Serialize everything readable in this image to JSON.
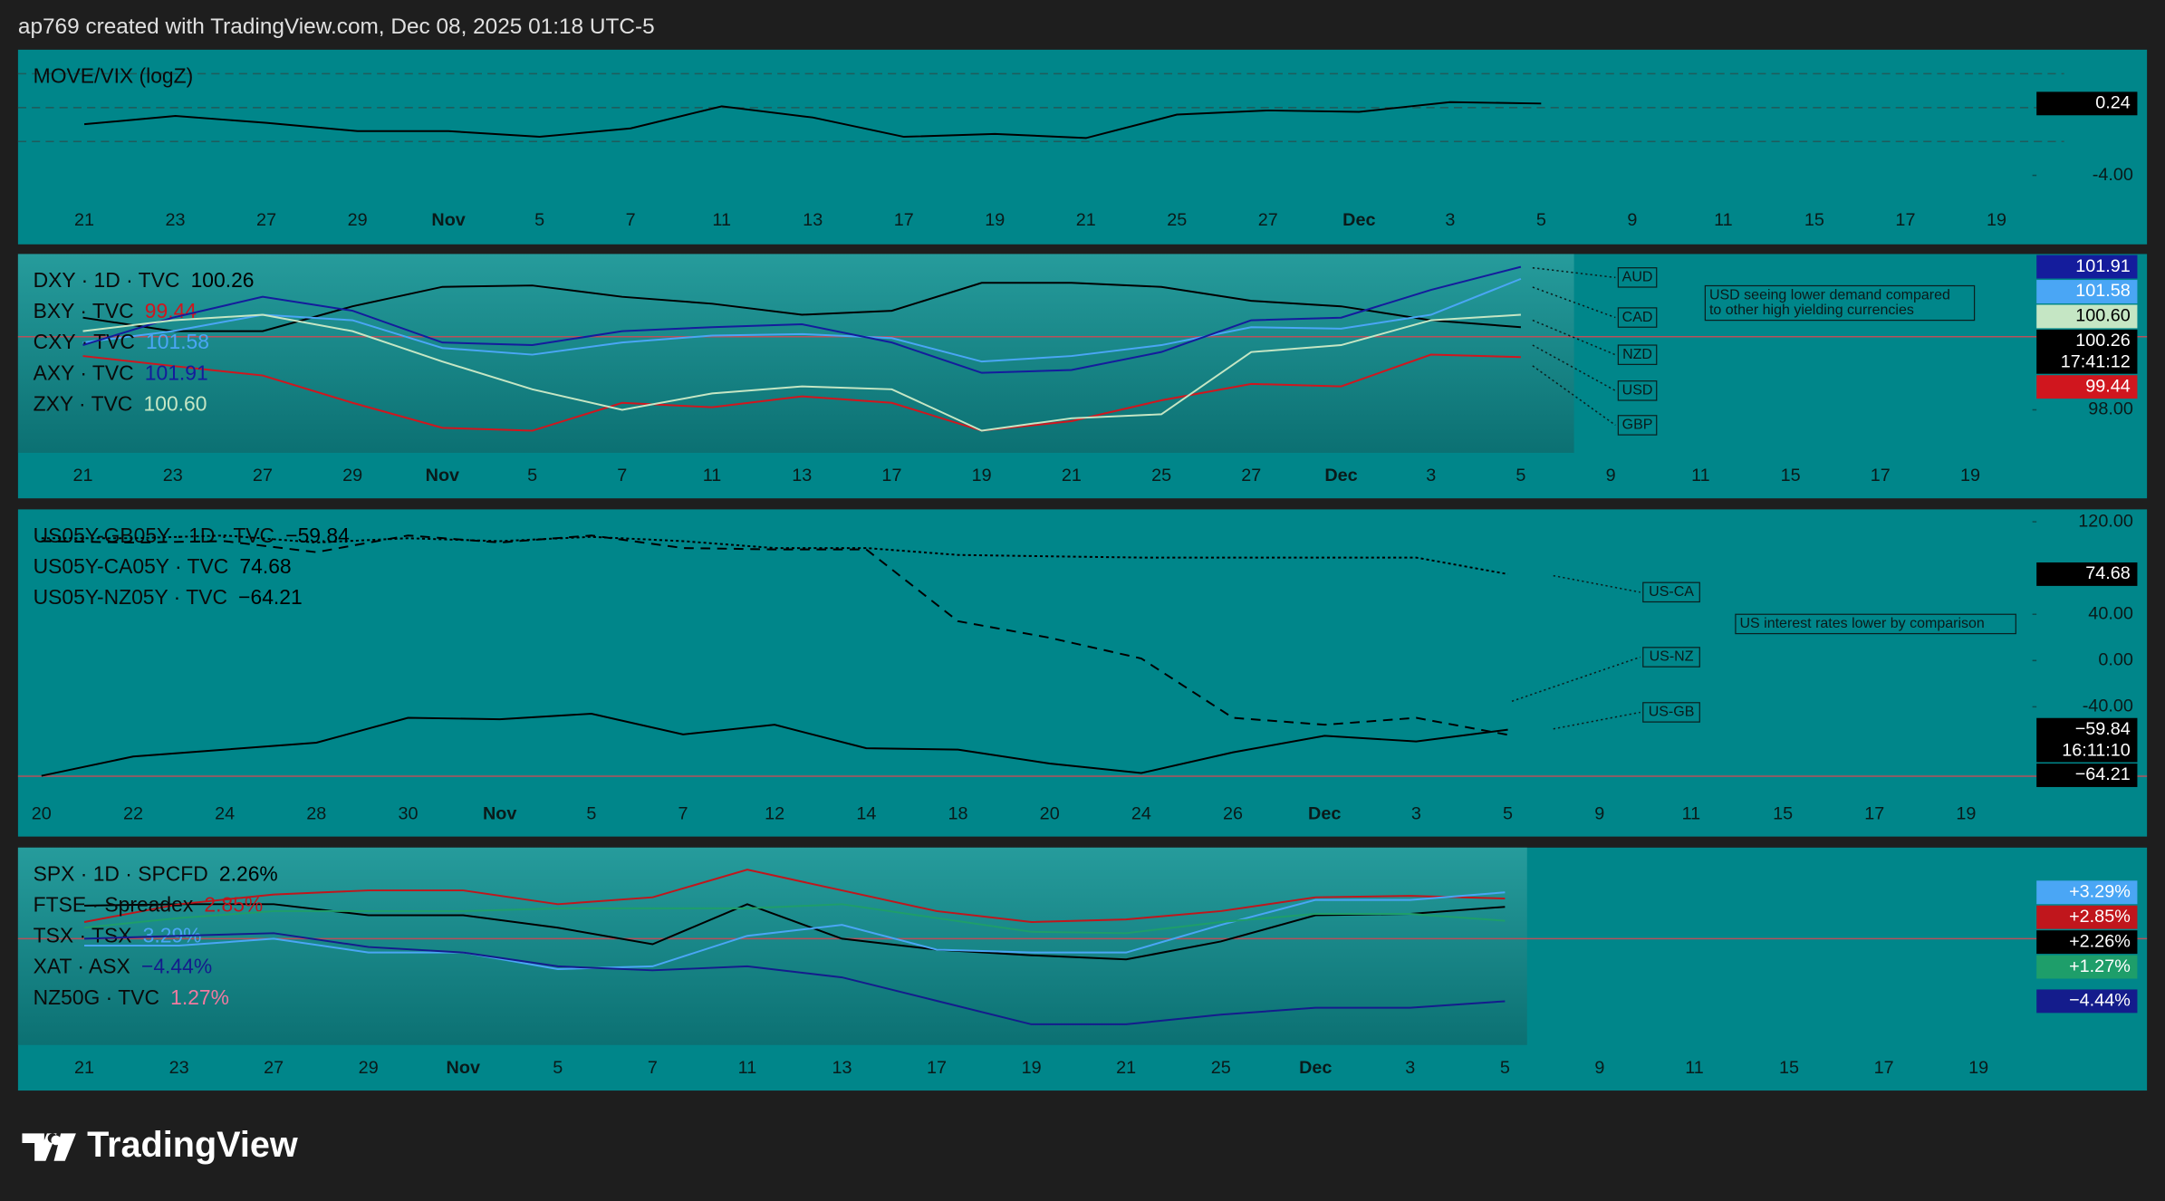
{
  "header": {
    "text": "ap769 created with TradingView.com, Dec 08, 2025 01:18 UTC-5"
  },
  "footer": {
    "brand": "TradingView"
  },
  "chart_data": [
    {
      "type": "line",
      "title": "MOVE/VIX (logZ)",
      "categories": [
        "21",
        "23",
        "27",
        "29",
        "Nov",
        "5",
        "7",
        "11",
        "13",
        "17",
        "19",
        "21",
        "25",
        "27",
        "Dec",
        "3",
        "5",
        "9",
        "11",
        "15",
        "17",
        "19"
      ],
      "ylim": [
        -5.71,
        3.42
      ],
      "yticks": [
        {
          "value": -4,
          "label": "-4.00"
        }
      ],
      "levels": [
        2,
        0,
        -2
      ],
      "level_style": "dashed",
      "level_color": "#1f5c5c",
      "series": [
        {
          "name": "MOVE/VIX",
          "color": "#000000",
          "last_label": "0.24",
          "values": [
            -0.98,
            -0.49,
            -0.9,
            -1.39,
            -1.39,
            -1.72,
            -1.23,
            0.08,
            -0.58,
            -1.72,
            -1.55,
            -1.8,
            -0.41,
            -0.17,
            -0.25,
            0.32,
            0.24,
            null,
            null,
            null,
            null,
            null
          ]
        }
      ]
    },
    {
      "type": "line",
      "categories": [
        "21",
        "23",
        "27",
        "29",
        "Nov",
        "5",
        "7",
        "11",
        "13",
        "17",
        "19",
        "21",
        "25",
        "27",
        "Dec",
        "3",
        "5",
        "9",
        "11",
        "15",
        "17",
        "19"
      ],
      "ylim": [
        96.75,
        102.26
      ],
      "yticks": [
        {
          "value": 98,
          "label": "98.00"
        }
      ],
      "levels": [
        100
      ],
      "level_style": "solid",
      "level_color": "#b8505a",
      "shaded": true,
      "series": [
        {
          "name": "DXY · 1D · TVC",
          "color": "#000000",
          "last_label": "100.26",
          "countdown": "17:41:12",
          "values": [
            100.52,
            100.15,
            100.15,
            100.83,
            101.36,
            101.4,
            101.09,
            100.9,
            100.6,
            100.71,
            101.47,
            101.47,
            101.36,
            100.98,
            100.83,
            100.45,
            100.26,
            null,
            null,
            null,
            null,
            null
          ]
        },
        {
          "name": "BXY · TVC",
          "color": "#d0161e",
          "last_label": "99.44",
          "values": [
            99.47,
            99.2,
            98.94,
            98.19,
            97.51,
            97.43,
            98.19,
            98.07,
            98.37,
            98.19,
            97.43,
            97.69,
            98.26,
            98.71,
            98.64,
            99.51,
            99.44,
            null,
            null,
            null,
            null,
            null
          ]
        },
        {
          "name": "CXY · TVC",
          "color": "#4aa6f5",
          "last_label": "101.58",
          "values": [
            99.84,
            100.15,
            100.6,
            100.45,
            99.69,
            99.51,
            99.84,
            100.03,
            100.07,
            99.96,
            99.32,
            99.47,
            99.77,
            100.26,
            100.22,
            100.6,
            101.58,
            null,
            null,
            null,
            null,
            null
          ]
        },
        {
          "name": "AXY · TVC",
          "color": "#141c9c",
          "last_label": "101.91",
          "values": [
            99.77,
            100.52,
            101.09,
            100.71,
            99.84,
            99.77,
            100.15,
            100.26,
            100.34,
            99.84,
            99.01,
            99.09,
            99.58,
            100.45,
            100.52,
            101.28,
            101.91,
            null,
            null,
            null,
            null,
            null
          ]
        },
        {
          "name": "ZXY · TVC",
          "color": "#c5e6c4",
          "last_label": "100.60",
          "values": [
            100.15,
            100.45,
            100.6,
            100.15,
            99.32,
            98.56,
            98.0,
            98.45,
            98.64,
            98.56,
            97.43,
            97.77,
            97.88,
            99.58,
            99.77,
            100.45,
            100.6,
            null,
            null,
            null,
            null,
            null
          ]
        }
      ],
      "annotations": [
        {
          "text": "AUD"
        },
        {
          "text": "CAD"
        },
        {
          "text": "NZD"
        },
        {
          "text": "USD"
        },
        {
          "text": "GBP"
        }
      ],
      "note": {
        "lines": [
          "USD seeing lower demand compared",
          "to other high yielding currencies"
        ]
      }
    },
    {
      "type": "line",
      "categories": [
        "20",
        "22",
        "24",
        "28",
        "30",
        "Nov",
        "5",
        "7",
        "12",
        "14",
        "18",
        "20",
        "24",
        "26",
        "Dec",
        "3",
        "5",
        "9",
        "11",
        "15",
        "17",
        "19"
      ],
      "ylim": [
        -115.2,
        131.9
      ],
      "yticks": [
        {
          "value": 120,
          "label": "120.00"
        },
        {
          "value": 40,
          "label": "40.00"
        },
        {
          "value": 0,
          "label": "0.00"
        },
        {
          "value": -40,
          "label": "-40.00"
        }
      ],
      "levels": [
        -100
      ],
      "level_style": "solid",
      "level_color": "#b8505a",
      "series": [
        {
          "name": "US05Y-GB05Y · 1D · TVC",
          "color": "#000000",
          "dash": "solid",
          "last_label": "−59.84",
          "countdown": "16:11:10",
          "values": [
            -99.7,
            -83.0,
            -77.0,
            -71.0,
            -49.6,
            -50.7,
            -46.0,
            -63.9,
            -55.5,
            -75.8,
            -77.0,
            -89.0,
            -97.3,
            -79.4,
            -65.1,
            -69.9,
            -59.84,
            null,
            null,
            null,
            null,
            null
          ]
        },
        {
          "name": "US05Y-CA05Y · TVC",
          "color": "#000000",
          "dash": "dotted",
          "last_label": "74.68",
          "values": [
            105.7,
            105.7,
            108.1,
            102.1,
            105.7,
            103.3,
            106.9,
            103.3,
            97.3,
            97.3,
            91.3,
            90.1,
            89.0,
            89.0,
            89.0,
            89.0,
            74.68,
            null,
            null,
            null,
            null,
            null
          ]
        },
        {
          "name": "US05Y-NZ05Y · TVC",
          "color": "#000000",
          "dash": "dashed",
          "last_label": "−64.21",
          "values": [
            103.3,
            102.1,
            103.3,
            93.7,
            108.1,
            102.1,
            108.1,
            97.3,
            96.1,
            96.1,
            34.0,
            19.7,
            1.8,
            -49.6,
            -55.5,
            -49.6,
            -64.21,
            null,
            null,
            null,
            null,
            null
          ]
        }
      ],
      "annotations": [
        {
          "text": "US-CA"
        },
        {
          "text": "US-NZ"
        },
        {
          "text": "US-GB"
        }
      ],
      "note": {
        "lines": [
          "US interest rates lower by comparison"
        ]
      }
    },
    {
      "type": "line",
      "categories": [
        "21",
        "23",
        "27",
        "29",
        "Nov",
        "5",
        "7",
        "11",
        "13",
        "17",
        "19",
        "21",
        "25",
        "Dec",
        "3",
        "5",
        "9",
        "11",
        "15",
        "17",
        "19"
      ],
      "ylim": [
        -7.65,
        6.47
      ],
      "levels": [
        0
      ],
      "level_style": "solid",
      "level_color": "#b8505a",
      "shaded": true,
      "series": [
        {
          "name": "SPX · 1D · SPCFD",
          "color": "#000000",
          "last_label": "2.26%",
          "box_label": "+2.26%",
          "values": [
            2.35,
            2.45,
            2.45,
            1.67,
            1.67,
            0.78,
            -0.39,
            2.45,
            0,
            -0.78,
            -1.18,
            -1.47,
            -0.2,
            1.67,
            1.76,
            2.26,
            null,
            null,
            null,
            null,
            null
          ]
        },
        {
          "name": "FTSE · Spreadex",
          "color": "#c0161c",
          "last_label": "2.85%",
          "box_label": "+2.85%",
          "values": [
            1.18,
            2.45,
            3.14,
            3.43,
            3.43,
            2.45,
            2.94,
            4.9,
            3.43,
            1.96,
            1.18,
            1.37,
            1.96,
            2.94,
            3.04,
            2.85,
            null,
            null,
            null,
            null,
            null
          ]
        },
        {
          "name": "TSX · TSX",
          "color": "#4aa6f5",
          "last_label": "3.29%",
          "box_label": "+3.29%",
          "values": [
            -0.49,
            -0.49,
            0,
            -0.98,
            -0.98,
            -2.16,
            -1.96,
            0.2,
            0.98,
            -0.78,
            -0.98,
            -0.98,
            0.98,
            2.75,
            2.75,
            3.29,
            null,
            null,
            null,
            null,
            null
          ]
        },
        {
          "name": "XAT · ASX",
          "color": "#141c8c",
          "last_label": "−4.44%",
          "box_label": "−4.44%",
          "values": [
            0,
            0.2,
            0.39,
            -0.59,
            -0.98,
            -1.96,
            -2.25,
            -1.96,
            -2.75,
            -4.41,
            -6.08,
            -6.08,
            -5.39,
            -4.9,
            -4.9,
            -4.44,
            null,
            null,
            null,
            null,
            null
          ]
        },
        {
          "name": "NZ50G · TVC",
          "color": "#1e9e6a",
          "legend_color": "#f07aa0",
          "last_label": "1.27%",
          "box_label": "+1.27%",
          "values": [
            0.78,
            1.47,
            1.96,
            1.96,
            1.96,
            2.16,
            2.16,
            2.16,
            2.45,
            1.47,
            0.49,
            0.39,
            1.18,
            1.76,
            1.76,
            1.27,
            null,
            null,
            null,
            null,
            null
          ]
        }
      ]
    }
  ]
}
